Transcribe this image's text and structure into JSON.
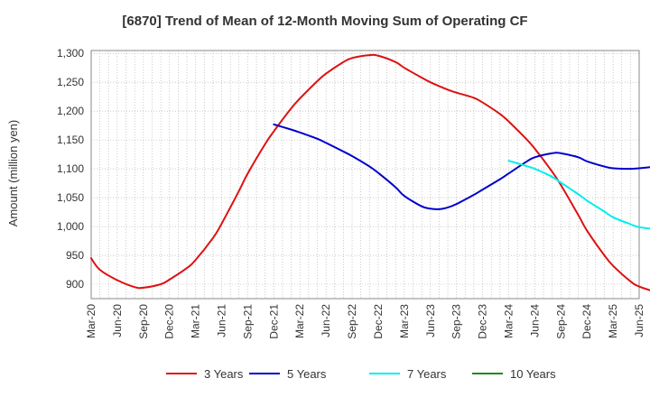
{
  "chart_data": {
    "type": "line",
    "title": "[6870]  Trend of Mean of 12-Month Moving Sum of Operating CF",
    "xlabel": "",
    "ylabel": "Amount (million yen)",
    "ylim": [
      875,
      1305
    ],
    "yticks": [
      900,
      950,
      1000,
      1050,
      1100,
      1150,
      1200,
      1250,
      1300
    ],
    "ytick_labels": [
      "900",
      "950",
      "1,000",
      "1,050",
      "1,100",
      "1,150",
      "1,200",
      "1,250",
      "1,300"
    ],
    "x_start": "Mar-20",
    "x_end": "Jun-25",
    "x_tick_labels": [
      "Mar-20",
      "Jun-20",
      "Sep-20",
      "Dec-20",
      "Mar-21",
      "Jun-21",
      "Sep-21",
      "Dec-21",
      "Mar-22",
      "Jun-22",
      "Sep-22",
      "Dec-22",
      "Mar-23",
      "Jun-23",
      "Sep-23",
      "Dec-23",
      "Mar-24",
      "Jun-24",
      "Sep-24",
      "Dec-24",
      "Mar-25",
      "Jun-25"
    ],
    "grid": true,
    "legend_position": "bottom",
    "series": [
      {
        "name": "3 Years",
        "color": "#dd1111",
        "points": [
          [
            0,
            945
          ],
          [
            1,
            925
          ],
          [
            3,
            907
          ],
          [
            5,
            895
          ],
          [
            6,
            894
          ],
          [
            8,
            900
          ],
          [
            9,
            908
          ],
          [
            11,
            928
          ],
          [
            12,
            942
          ],
          [
            14,
            980
          ],
          [
            15,
            1005
          ],
          [
            17,
            1062
          ],
          [
            18,
            1092
          ],
          [
            20,
            1143
          ],
          [
            21,
            1165
          ],
          [
            23,
            1205
          ],
          [
            24,
            1222
          ],
          [
            26,
            1252
          ],
          [
            27,
            1265
          ],
          [
            29,
            1285
          ],
          [
            30,
            1292
          ],
          [
            32,
            1297
          ],
          [
            33,
            1296
          ],
          [
            35,
            1285
          ],
          [
            36,
            1275
          ],
          [
            38,
            1258
          ],
          [
            39,
            1250
          ],
          [
            41,
            1237
          ],
          [
            42,
            1232
          ],
          [
            44,
            1223
          ],
          [
            45,
            1215
          ],
          [
            47,
            1195
          ],
          [
            48,
            1182
          ],
          [
            50,
            1152
          ],
          [
            51,
            1135
          ],
          [
            53,
            1095
          ],
          [
            54,
            1072
          ],
          [
            56,
            1020
          ],
          [
            57,
            993
          ],
          [
            59,
            950
          ],
          [
            60,
            932
          ],
          [
            62,
            905
          ],
          [
            63,
            896
          ],
          [
            65,
            886
          ]
        ]
      },
      {
        "name": "5 Years",
        "color": "#0000cc",
        "points": [
          [
            21,
            1177
          ],
          [
            23,
            1168
          ],
          [
            24,
            1163
          ],
          [
            26,
            1152
          ],
          [
            27,
            1145
          ],
          [
            29,
            1130
          ],
          [
            30,
            1122
          ],
          [
            32,
            1104
          ],
          [
            33,
            1093
          ],
          [
            35,
            1068
          ],
          [
            36,
            1053
          ],
          [
            38,
            1035
          ],
          [
            39,
            1031
          ],
          [
            40,
            1030
          ],
          [
            41,
            1033
          ],
          [
            42,
            1039
          ],
          [
            44,
            1055
          ],
          [
            45,
            1064
          ],
          [
            47,
            1082
          ],
          [
            48,
            1092
          ],
          [
            50,
            1112
          ],
          [
            51,
            1120
          ],
          [
            53,
            1127
          ],
          [
            54,
            1127
          ],
          [
            56,
            1120
          ],
          [
            57,
            1113
          ],
          [
            59,
            1104
          ],
          [
            60,
            1101
          ],
          [
            62,
            1100
          ],
          [
            63,
            1101
          ],
          [
            65,
            1104
          ]
        ]
      },
      {
        "name": "7 Years",
        "color": "#00eeee",
        "points": [
          [
            48,
            1114
          ],
          [
            50,
            1105
          ],
          [
            51,
            1100
          ],
          [
            53,
            1086
          ],
          [
            54,
            1076
          ],
          [
            56,
            1056
          ],
          [
            57,
            1045
          ],
          [
            59,
            1026
          ],
          [
            60,
            1016
          ],
          [
            62,
            1004
          ],
          [
            63,
            999
          ],
          [
            65,
            995
          ]
        ]
      },
      {
        "name": "10 Years",
        "color": "#228822",
        "points": []
      }
    ]
  }
}
